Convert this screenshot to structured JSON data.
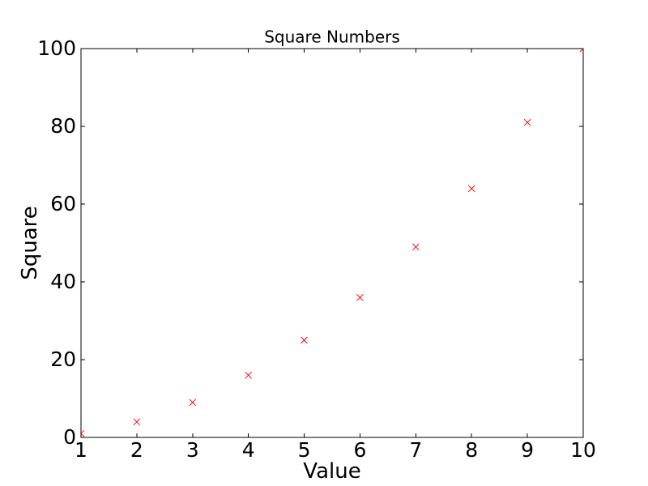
{
  "chart_data": {
    "type": "scatter",
    "title": "Square Numbers",
    "xlabel": "Value",
    "ylabel": "Square",
    "x": [
      1,
      2,
      3,
      4,
      5,
      6,
      7,
      8,
      9,
      10
    ],
    "y": [
      1,
      4,
      9,
      16,
      25,
      36,
      49,
      64,
      81,
      100
    ],
    "xlim": [
      1,
      10
    ],
    "ylim": [
      0,
      100
    ],
    "xticks": [
      1,
      2,
      3,
      4,
      5,
      6,
      7,
      8,
      9,
      10
    ],
    "yticks": [
      0,
      20,
      40,
      60,
      80,
      100
    ],
    "marker": "x",
    "marker_color": "#ff0000",
    "axis_color": "#000000",
    "text_color": "#000000",
    "background_color": "#ffffff",
    "grid": false,
    "legend": null
  }
}
